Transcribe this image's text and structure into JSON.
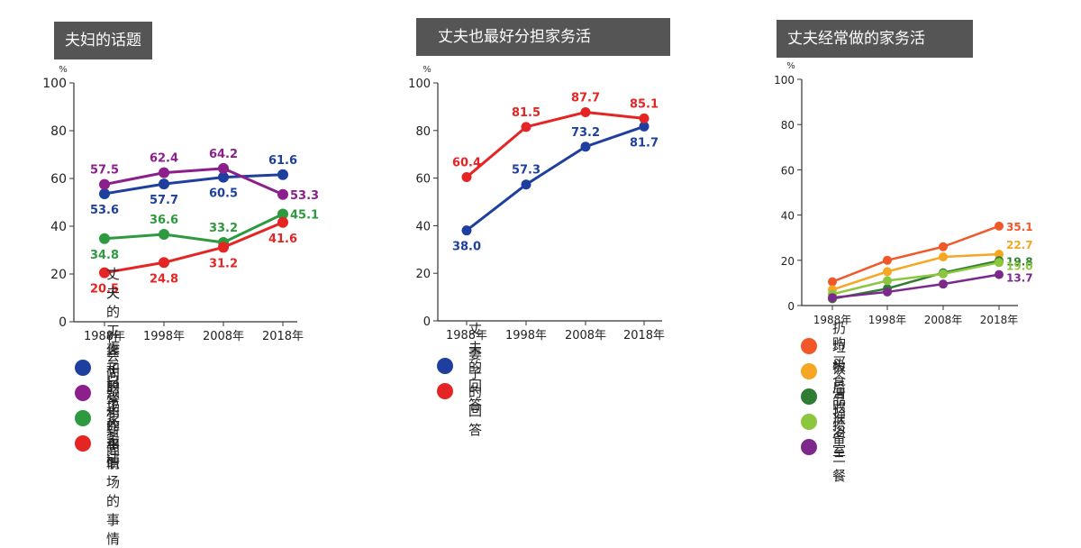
{
  "chart_data": [
    {
      "type": "line",
      "title": "夫妇的话题",
      "ylabel": "%",
      "ylim": [
        0,
        100
      ],
      "yticks": [
        0,
        20,
        40,
        60,
        80,
        100
      ],
      "categories": [
        "1988年",
        "1998年",
        "2008年",
        "2018年"
      ],
      "series": [
        {
          "name": "丈夫的工作和职场的事情",
          "color": "#1f3f9e",
          "values": [
            53.6,
            57.7,
            60.5,
            61.6
          ],
          "labels": [
            "53.6",
            "57.7",
            "60.5",
            "61.6"
          ],
          "label_pos": [
            "below",
            "below",
            "below",
            "above"
          ]
        },
        {
          "name": "社会问题和新闻",
          "color": "#8b1f8c",
          "values": [
            57.5,
            62.4,
            64.2,
            53.3
          ],
          "labels": [
            "57.5",
            "62.4",
            "64.2",
            "53.3"
          ],
          "label_pos": [
            "above",
            "above",
            "above",
            "right"
          ]
        },
        {
          "name": "日常家务活",
          "color": "#2e9a40",
          "values": [
            34.8,
            36.6,
            33.2,
            45.1
          ],
          "labels": [
            "34.8",
            "36.6",
            "33.2",
            "45.1"
          ],
          "label_pos": [
            "below",
            "above",
            "above",
            "right"
          ]
        },
        {
          "name": "妻子的工作和职场的事情",
          "color": "#e52424",
          "values": [
            20.5,
            24.8,
            31.2,
            41.6
          ],
          "labels": [
            "20.5",
            "24.8",
            "31.2",
            "41.6"
          ],
          "label_pos": [
            "below",
            "below",
            "below",
            "below"
          ]
        }
      ]
    },
    {
      "type": "line",
      "title": "丈夫也最好分担家务活",
      "ylabel": "%",
      "ylim": [
        0,
        100
      ],
      "yticks": [
        0,
        20,
        40,
        60,
        80,
        100
      ],
      "categories": [
        "1988年",
        "1998年",
        "2008年",
        "2018年"
      ],
      "series": [
        {
          "name": "丈夫的回答",
          "color": "#1f3f9e",
          "values": [
            38.0,
            57.3,
            73.2,
            81.7
          ],
          "labels": [
            "38.0",
            "57.3",
            "73.2",
            "81.7"
          ],
          "label_pos": [
            "below",
            "above",
            "above",
            "below"
          ]
        },
        {
          "name": "妻子的回答",
          "color": "#e52424",
          "values": [
            60.4,
            81.5,
            87.7,
            85.1
          ],
          "labels": [
            "60.4",
            "81.5",
            "87.7",
            "85.1"
          ],
          "label_pos": [
            "above",
            "above",
            "above",
            "above"
          ]
        }
      ]
    },
    {
      "type": "line",
      "title": "丈夫经常做的家务活",
      "ylabel": "%",
      "ylim": [
        0,
        100
      ],
      "yticks": [
        0,
        20,
        40,
        60,
        80,
        100
      ],
      "categories": [
        "1988年",
        "1998年",
        "2008年",
        "2018年"
      ],
      "series": [
        {
          "name": "扔垃圾",
          "color": "#f0582a",
          "values": [
            10.5,
            20.0,
            26.0,
            35.1
          ],
          "labels": [
            "",
            "",
            "",
            "35.1"
          ],
          "label_pos": [
            "none",
            "none",
            "none",
            "right"
          ]
        },
        {
          "name": "购买食品",
          "color": "#f5a623",
          "values": [
            7.0,
            15.0,
            21.5,
            22.7
          ],
          "labels": [
            "",
            "",
            "",
            "22.7"
          ],
          "label_pos": [
            "none",
            "none",
            "none",
            "right-up"
          ]
        },
        {
          "name": "饭后收拾",
          "color": "#2e7d32",
          "values": [
            3.0,
            7.5,
            14.5,
            19.8
          ],
          "labels": [
            "",
            "",
            "",
            "19.8"
          ],
          "label_pos": [
            "none",
            "none",
            "none",
            "right"
          ]
        },
        {
          "name": "清扫浴室",
          "color": "#8cc63e",
          "values": [
            5.0,
            11.0,
            14.0,
            19.0
          ],
          "labels": [
            "",
            "",
            "",
            "19.0"
          ],
          "label_pos": [
            "none",
            "none",
            "none",
            "right-down"
          ]
        },
        {
          "name": "准备三餐",
          "color": "#7b2a8c",
          "values": [
            3.5,
            6.0,
            9.5,
            13.7
          ],
          "labels": [
            "",
            "",
            "",
            "13.7"
          ],
          "label_pos": [
            "none",
            "none",
            "none",
            "right-down"
          ]
        }
      ]
    }
  ]
}
